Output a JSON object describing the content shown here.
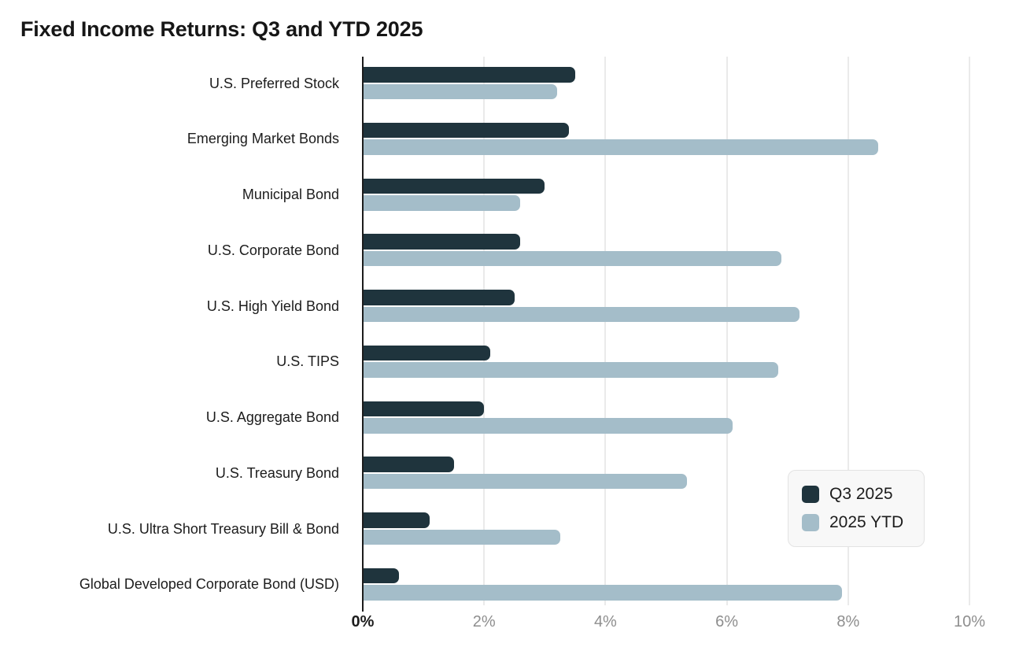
{
  "page_title": "Fixed Income Returns: Q3 and YTD 2025",
  "chart_data": {
    "type": "bar",
    "orientation": "horizontal",
    "title": "Fixed Income Returns: Q3 and YTD 2025",
    "categories": [
      "U.S. Preferred Stock",
      "Emerging Market Bonds",
      "Municipal Bond",
      "U.S. Corporate Bond",
      "U.S. High Yield Bond",
      "U.S. TIPS",
      "U.S. Aggregate Bond",
      "U.S. Treasury Bond",
      "U.S. Ultra Short Treasury Bill & Bond",
      "Global Developed Corporate Bond (USD)"
    ],
    "series": [
      {
        "name": "Q3 2025",
        "color": "#1f343d",
        "values": [
          3.5,
          3.4,
          3.0,
          2.6,
          2.5,
          2.1,
          2.0,
          1.5,
          1.1,
          0.6
        ]
      },
      {
        "name": "2025 YTD",
        "color": "#a4bdc9",
        "values": [
          3.2,
          8.5,
          2.6,
          6.9,
          7.2,
          6.85,
          6.1,
          5.35,
          3.25,
          7.9
        ]
      }
    ],
    "xlabel": "",
    "ylabel": "",
    "x_axis": {
      "unit": "%",
      "tick_labels": [
        "0%",
        "2%",
        "4%",
        "6%",
        "8%",
        "10%"
      ],
      "tick_values": [
        0,
        2,
        4,
        6,
        8,
        10
      ],
      "min": 0,
      "max": 10
    },
    "grid": true,
    "legend": {
      "position": "bottom-right",
      "entries": [
        "Q3 2025",
        "2025 YTD"
      ]
    },
    "colors": {
      "background": "#ffffff",
      "gridline": "#eaeaea",
      "axis_line": "#1c1c1c",
      "title_text": "#161616",
      "category_text": "#1c1c1c",
      "tick_text_zero": "#1d1d1d",
      "tick_text": "#8e8e8e",
      "legend_bg": "#f8f8f8",
      "legend_border": "#e3e3e3"
    }
  }
}
